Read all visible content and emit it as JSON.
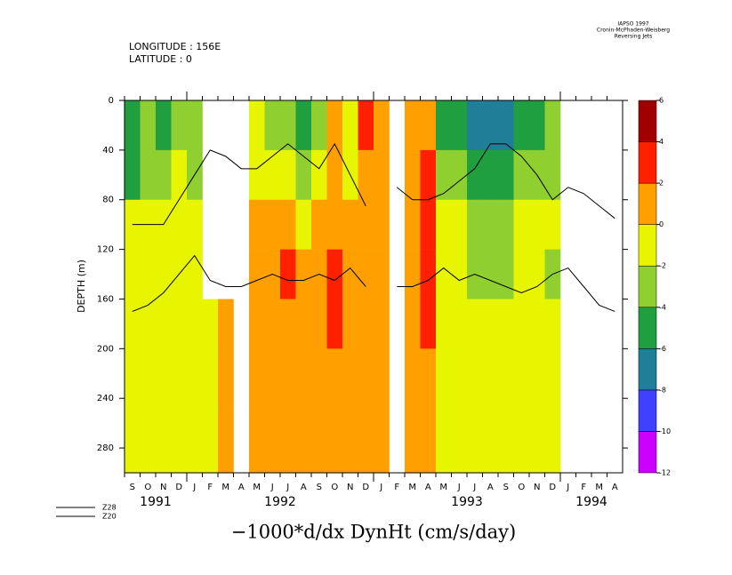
{
  "chart_data": {
    "type": "heatmap",
    "title": "−1000*d/dx DynHt (cm/s/day)",
    "annotations": [
      "LONGITUDE : 156E",
      "LATITUDE : 0"
    ],
    "credits": [
      "IAPSO 1997",
      "Cronin-McPhaden-Weisberg",
      "Reversing Jets"
    ],
    "ylabel": "DEPTH (m)",
    "categories": [
      "S",
      "O",
      "N",
      "D",
      "J",
      "F",
      "M",
      "A",
      "M",
      "J",
      "J",
      "A",
      "S",
      "O",
      "N",
      "D",
      "J",
      "F",
      "M",
      "A",
      "M",
      "J",
      "J",
      "A",
      "S",
      "O",
      "N",
      "D",
      "J",
      "F",
      "M",
      "A"
    ],
    "years": [
      "1991",
      "1992",
      "1993",
      "1994"
    ],
    "ylim": [
      0,
      300
    ],
    "yticks": [
      0,
      40,
      80,
      120,
      160,
      200,
      240,
      280
    ],
    "depth_bins": [
      0,
      40,
      80,
      120,
      160,
      200,
      250,
      300
    ],
    "z": [
      [
        -5,
        -3,
        -5,
        -3,
        -3,
        null,
        null,
        null,
        -1,
        -3,
        -3,
        -5,
        -3,
        1,
        -1,
        3,
        1,
        null,
        1,
        1,
        -5,
        -5,
        -7,
        -7,
        -7,
        -5,
        -5,
        -3,
        null,
        null,
        null,
        null
      ],
      [
        -5,
        -3,
        -3,
        -1,
        -3,
        null,
        null,
        null,
        -1,
        -1,
        -1,
        -3,
        -1,
        1,
        -1,
        1,
        1,
        null,
        1,
        3,
        -3,
        -3,
        -5,
        -5,
        -5,
        -3,
        -3,
        -3,
        null,
        null,
        null,
        null
      ],
      [
        -1,
        -1,
        -1,
        -1,
        -1,
        null,
        null,
        null,
        1,
        1,
        1,
        -1,
        1,
        1,
        1,
        1,
        1,
        null,
        1,
        3,
        -1,
        -1,
        -3,
        -3,
        -3,
        -1,
        -1,
        -1,
        null,
        null,
        null,
        null
      ],
      [
        -1,
        -1,
        -1,
        -1,
        -1,
        null,
        null,
        null,
        1,
        1,
        3,
        1,
        1,
        3,
        1,
        1,
        1,
        null,
        1,
        3,
        -1,
        -1,
        -3,
        -3,
        -3,
        -1,
        -1,
        -3,
        null,
        null,
        null,
        null
      ],
      [
        -1,
        -1,
        -1,
        -1,
        -1,
        -1,
        1,
        null,
        1,
        1,
        1,
        1,
        1,
        3,
        1,
        1,
        1,
        null,
        1,
        3,
        -1,
        -1,
        -1,
        -1,
        -1,
        -1,
        -1,
        -1,
        null,
        null,
        null,
        null
      ],
      [
        -1,
        -1,
        -1,
        -1,
        -1,
        -1,
        1,
        null,
        1,
        1,
        1,
        1,
        1,
        1,
        1,
        1,
        1,
        null,
        1,
        1,
        -1,
        -1,
        -1,
        -1,
        -1,
        -1,
        -1,
        -1,
        null,
        null,
        null,
        null
      ],
      [
        -1,
        -1,
        -1,
        -1,
        -1,
        -1,
        1,
        null,
        1,
        1,
        1,
        1,
        1,
        1,
        1,
        1,
        1,
        null,
        1,
        1,
        -1,
        -1,
        -1,
        -1,
        -1,
        -1,
        -1,
        -1,
        null,
        null,
        null,
        null
      ]
    ],
    "levels": [
      -12,
      -10,
      -8,
      -6,
      -4,
      -2,
      0,
      2,
      4,
      6
    ],
    "colors": [
      "#cc00ff",
      "#4040ff",
      "#1f7f99",
      "#1f9f3f",
      "#8fcf2f",
      "#e8f500",
      "#ffa000",
      "#ff2000",
      "#a00000"
    ],
    "series": [
      {
        "name": "Z28",
        "color": "#000000",
        "values": [
          100,
          100,
          100,
          80,
          60,
          40,
          45,
          55,
          55,
          45,
          35,
          45,
          55,
          35,
          60,
          85,
          null,
          70,
          80,
          80,
          75,
          65,
          55,
          35,
          35,
          45,
          60,
          80,
          70,
          75,
          85,
          95
        ]
      },
      {
        "name": "Z20",
        "color": "#000000",
        "values": [
          170,
          165,
          155,
          140,
          125,
          145,
          150,
          150,
          145,
          140,
          145,
          145,
          140,
          145,
          135,
          150,
          null,
          150,
          150,
          145,
          135,
          145,
          140,
          145,
          150,
          155,
          150,
          140,
          135,
          150,
          165,
          170
        ]
      }
    ]
  }
}
